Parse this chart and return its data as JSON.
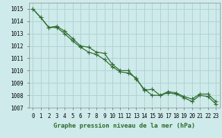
{
  "x": [
    0,
    1,
    2,
    3,
    4,
    5,
    6,
    7,
    8,
    9,
    10,
    11,
    12,
    13,
    14,
    15,
    16,
    17,
    18,
    19,
    20,
    21,
    22,
    23
  ],
  "line1": [
    1015.0,
    1014.3,
    1013.5,
    1013.6,
    1013.2,
    1012.6,
    1012.0,
    1011.9,
    1011.5,
    1011.4,
    1010.5,
    1010.0,
    1010.0,
    1009.3,
    1008.5,
    1008.0,
    1008.0,
    1008.3,
    1008.2,
    1007.9,
    1007.7,
    1008.1,
    1008.1,
    1007.5
  ],
  "line2": [
    1015.0,
    1014.3,
    1013.5,
    1013.5,
    1013.0,
    1012.4,
    1011.9,
    1011.5,
    1011.3,
    1010.9,
    1010.3,
    1009.9,
    1009.8,
    1009.4,
    1008.4,
    1008.5,
    1008.0,
    1008.2,
    1008.1,
    1007.8,
    1007.5,
    1008.0,
    1007.9,
    1007.3
  ],
  "ylim": [
    1007,
    1015.5
  ],
  "yticks": [
    1007,
    1008,
    1009,
    1010,
    1011,
    1012,
    1013,
    1014,
    1015
  ],
  "xlabel": "Graphe pression niveau de la mer (hPa)",
  "line_color": "#2d6a2d",
  "bg_color": "#ceeaea",
  "grid_color": "#aacfcf",
  "markersize": 2.0,
  "linewidth": 0.9,
  "tick_fontsize": 5.5,
  "xlabel_fontsize": 6.5
}
